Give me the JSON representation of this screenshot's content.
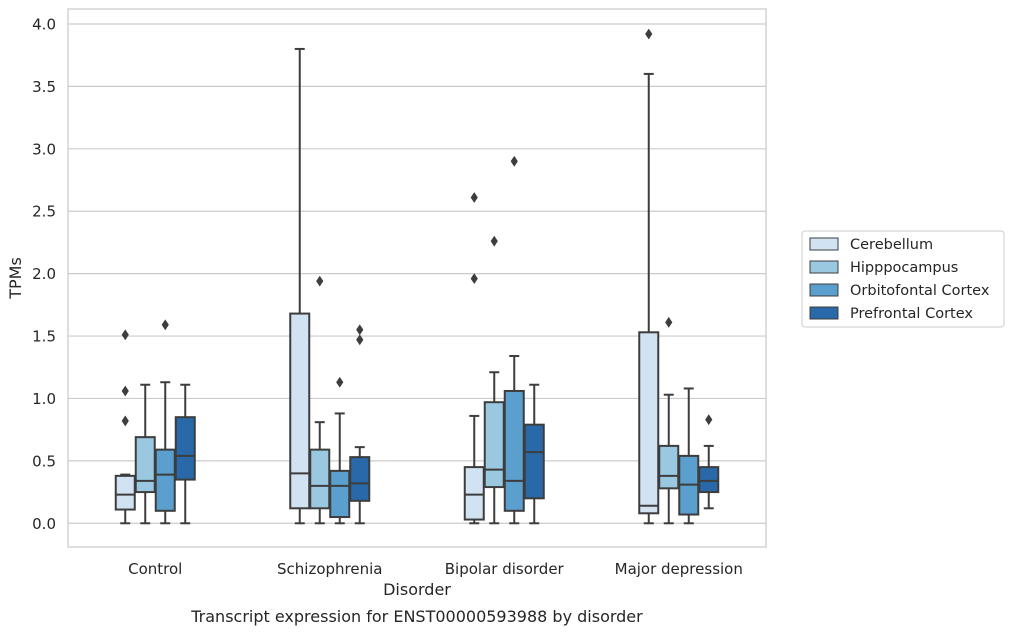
{
  "chart_data": {
    "type": "box",
    "caption": "Transcript expression for ENST00000593988 by disorder",
    "xlabel": "Disorder",
    "ylabel": "TPMs",
    "ylim": [
      -0.19,
      4.12
    ],
    "yticks": [
      "0.0",
      "0.5",
      "1.0",
      "1.5",
      "2.0",
      "2.5",
      "3.0",
      "3.5",
      "4.0"
    ],
    "grid": "horizontal",
    "legend_position": "right",
    "categories": [
      "Control",
      "Schizophrenia",
      "Bipolar disorder",
      "Major depression"
    ],
    "series": [
      {
        "name": "Cerebellum",
        "color": "#d1e2f3",
        "boxes": [
          {
            "whisker_low": 0.0,
            "q1": 0.11,
            "median": 0.23,
            "q3": 0.38,
            "whisker_high": 0.39,
            "outliers": [
              0.82,
              1.06,
              1.51
            ]
          },
          {
            "whisker_low": 0.0,
            "q1": 0.12,
            "median": 0.4,
            "q3": 1.68,
            "whisker_high": 3.8,
            "outliers": []
          },
          {
            "whisker_low": 0.0,
            "q1": 0.03,
            "median": 0.23,
            "q3": 0.45,
            "whisker_high": 0.86,
            "outliers": [
              1.96,
              2.61
            ]
          },
          {
            "whisker_low": 0.0,
            "q1": 0.08,
            "median": 0.14,
            "q3": 1.53,
            "whisker_high": 3.6,
            "outliers": [
              3.92
            ]
          }
        ]
      },
      {
        "name": "Hipppocampus",
        "color": "#9ac8e0",
        "boxes": [
          {
            "whisker_low": 0.0,
            "q1": 0.25,
            "median": 0.34,
            "q3": 0.69,
            "whisker_high": 1.11,
            "outliers": []
          },
          {
            "whisker_low": 0.0,
            "q1": 0.12,
            "median": 0.3,
            "q3": 0.59,
            "whisker_high": 0.81,
            "outliers": [
              1.94
            ]
          },
          {
            "whisker_low": 0.0,
            "q1": 0.29,
            "median": 0.43,
            "q3": 0.97,
            "whisker_high": 1.21,
            "outliers": [
              2.26
            ]
          },
          {
            "whisker_low": 0.0,
            "q1": 0.28,
            "median": 0.38,
            "q3": 0.62,
            "whisker_high": 1.03,
            "outliers": [
              1.61
            ]
          }
        ]
      },
      {
        "name": "Orbitofontal Cortex",
        "color": "#5a9fcd",
        "boxes": [
          {
            "whisker_low": 0.0,
            "q1": 0.1,
            "median": 0.39,
            "q3": 0.59,
            "whisker_high": 1.13,
            "outliers": [
              1.59
            ]
          },
          {
            "whisker_low": 0.0,
            "q1": 0.05,
            "median": 0.3,
            "q3": 0.42,
            "whisker_high": 0.88,
            "outliers": [
              1.13
            ]
          },
          {
            "whisker_low": 0.0,
            "q1": 0.1,
            "median": 0.34,
            "q3": 1.06,
            "whisker_high": 1.34,
            "outliers": [
              2.9
            ]
          },
          {
            "whisker_low": 0.0,
            "q1": 0.07,
            "median": 0.31,
            "q3": 0.54,
            "whisker_high": 1.08,
            "outliers": []
          }
        ]
      },
      {
        "name": "Prefrontal Cortex",
        "color": "#2a69a9",
        "boxes": [
          {
            "whisker_low": 0.0,
            "q1": 0.35,
            "median": 0.54,
            "q3": 0.85,
            "whisker_high": 1.11,
            "outliers": []
          },
          {
            "whisker_low": 0.0,
            "q1": 0.18,
            "median": 0.32,
            "q3": 0.53,
            "whisker_high": 0.61,
            "outliers": [
              1.47,
              1.55
            ]
          },
          {
            "whisker_low": 0.0,
            "q1": 0.2,
            "median": 0.57,
            "q3": 0.79,
            "whisker_high": 1.11,
            "outliers": []
          },
          {
            "whisker_low": 0.12,
            "q1": 0.25,
            "median": 0.34,
            "q3": 0.45,
            "whisker_high": 0.62,
            "outliers": [
              0.83
            ]
          }
        ]
      }
    ]
  }
}
